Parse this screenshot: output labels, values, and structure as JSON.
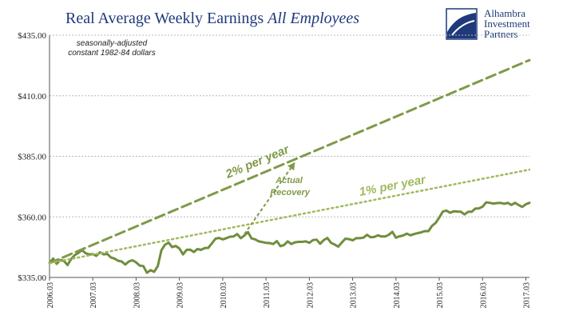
{
  "title_main": "Real Average Weekly Earnings",
  "title_italic": "All Employees",
  "logo": {
    "line1": "Alhambra",
    "line2": "Investment",
    "line3": "Partners"
  },
  "colors": {
    "title": "#1f3a7a",
    "actual": "#6f8e3c",
    "trend2": "#7f9a47",
    "trend1": "#9fba5e",
    "grid": "#b8b8b8"
  },
  "chart_data": {
    "type": "line",
    "title": "Real Average Weekly Earnings All Employees",
    "note": [
      "seasonally-adjusted",
      "constant 1982-84 dollars"
    ],
    "ylim": [
      335,
      435
    ],
    "yticks": [
      335,
      360,
      385,
      410,
      435
    ],
    "ytick_labels": [
      "$335.00",
      "$360.00",
      "$385.00",
      "$410.00",
      "$435.00"
    ],
    "xlim": [
      2006.167,
      2017.25
    ],
    "xticks": [
      2006.167,
      2007.167,
      2008.167,
      2009.167,
      2010.167,
      2011.167,
      2012.167,
      2013.167,
      2014.167,
      2015.167,
      2016.167,
      2017.167
    ],
    "xtick_labels": [
      "2006.03",
      "2007.03",
      "2008.03",
      "2009.03",
      "2010.03",
      "2011.03",
      "2012.03",
      "2013.03",
      "2014.03",
      "2015.03",
      "2016.03",
      "2017.03"
    ],
    "grid": true,
    "series": [
      {
        "name": "Actual",
        "style": "solid",
        "x": [
          2006.167,
          2006.25,
          2006.333,
          2006.417,
          2006.5,
          2006.583,
          2006.667,
          2006.75,
          2006.833,
          2006.917,
          2007.0,
          2007.083,
          2007.167,
          2007.25,
          2007.333,
          2007.417,
          2007.5,
          2007.583,
          2007.667,
          2007.75,
          2007.833,
          2007.917,
          2008.0,
          2008.083,
          2008.167,
          2008.25,
          2008.333,
          2008.417,
          2008.5,
          2008.583,
          2008.667,
          2008.75,
          2008.833,
          2008.917,
          2009.0,
          2009.083,
          2009.167,
          2009.25,
          2009.333,
          2009.417,
          2009.5,
          2009.583,
          2009.667,
          2009.75,
          2009.833,
          2009.917,
          2010.0,
          2010.083,
          2010.167,
          2010.25,
          2010.333,
          2010.417,
          2010.5,
          2010.583,
          2010.667,
          2010.75,
          2010.833,
          2010.917,
          2011.0,
          2011.083,
          2011.167,
          2011.25,
          2011.333,
          2011.417,
          2011.5,
          2011.583,
          2011.667,
          2011.75,
          2011.833,
          2011.917,
          2012.0,
          2012.083,
          2012.167,
          2012.25,
          2012.333,
          2012.417,
          2012.5,
          2012.583,
          2012.667,
          2012.75,
          2012.833,
          2012.917,
          2013.0,
          2013.083,
          2013.167,
          2013.25,
          2013.333,
          2013.417,
          2013.5,
          2013.583,
          2013.667,
          2013.75,
          2013.833,
          2013.917,
          2014.0,
          2014.083,
          2014.167,
          2014.25,
          2014.333,
          2014.417,
          2014.5,
          2014.583,
          2014.667,
          2014.75,
          2014.833,
          2014.917,
          2015.0,
          2015.083,
          2015.167,
          2015.25,
          2015.333,
          2015.417,
          2015.5,
          2015.583,
          2015.667,
          2015.75,
          2015.833,
          2015.917,
          2016.0,
          2016.083,
          2016.167,
          2016.25,
          2016.333,
          2016.417,
          2016.5,
          2016.583,
          2016.667,
          2016.75,
          2016.833,
          2016.917,
          2017.0,
          2017.083,
          2017.167,
          2017.25
        ],
        "values": [
          341.0,
          342.8,
          340.6,
          342.2,
          341.8,
          340.1,
          342.6,
          344.2,
          345.1,
          346.3,
          345.0,
          344.5,
          344.6,
          343.9,
          345.4,
          344.5,
          344.7,
          343.3,
          342.8,
          341.9,
          341.6,
          340.3,
          341.6,
          342.1,
          341.2,
          339.9,
          339.7,
          336.9,
          338.0,
          337.3,
          339.7,
          346.2,
          348.5,
          349.4,
          347.5,
          348.0,
          346.9,
          344.5,
          346.4,
          346.5,
          345.5,
          346.7,
          346.4,
          347.1,
          347.2,
          349.1,
          351.0,
          351.3,
          350.7,
          351.2,
          351.8,
          351.9,
          352.9,
          351.2,
          352.3,
          353.7,
          351.1,
          350.7,
          349.9,
          349.6,
          349.3,
          349.2,
          348.8,
          350.0,
          347.9,
          348.4,
          349.9,
          348.8,
          349.5,
          349.7,
          349.7,
          349.9,
          349.3,
          350.4,
          350.6,
          348.9,
          350.4,
          351.3,
          349.3,
          348.6,
          347.7,
          349.4,
          351.0,
          350.8,
          350.3,
          351.2,
          351.2,
          351.4,
          352.6,
          351.6,
          351.7,
          352.4,
          351.9,
          351.9,
          352.6,
          353.8,
          351.4,
          352.0,
          352.3,
          353.1,
          352.4,
          352.9,
          353.3,
          353.6,
          354.1,
          354.1,
          356.3,
          357.5,
          359.7,
          362.2,
          362.6,
          361.7,
          362.3,
          362.2,
          362.1,
          361.0,
          362.1,
          362.1,
          363.4,
          363.5,
          364.2,
          366.0,
          365.8,
          365.5,
          365.7,
          365.8,
          365.4,
          365.8,
          364.9,
          365.8,
          364.9,
          364.1,
          365.2,
          365.8
        ]
      },
      {
        "name": "2% per year",
        "style": "dashed",
        "x": [
          2006.167,
          2017.25
        ],
        "values": [
          340.9,
          424.7
        ]
      },
      {
        "name": "1% per year",
        "style": "dotted",
        "x": [
          2006.167,
          2017.25
        ],
        "values": [
          340.9,
          379.5
        ]
      }
    ],
    "annotations": [
      {
        "text": "2% per year",
        "x": 2011.0,
        "y": 381.3,
        "series": "2% per year"
      },
      {
        "text": "1% per year",
        "x": 2014.1,
        "y": 371.3,
        "series": "1% per year"
      },
      {
        "text": "Actual",
        "x": 2011.7,
        "y": 374.0
      },
      {
        "text": "Recovery",
        "x": 2011.72,
        "y": 369.0
      }
    ],
    "arrow": {
      "from": [
        2010.667,
        352.9
      ],
      "to": [
        2011.833,
        382.5
      ],
      "style": "dashed"
    }
  }
}
